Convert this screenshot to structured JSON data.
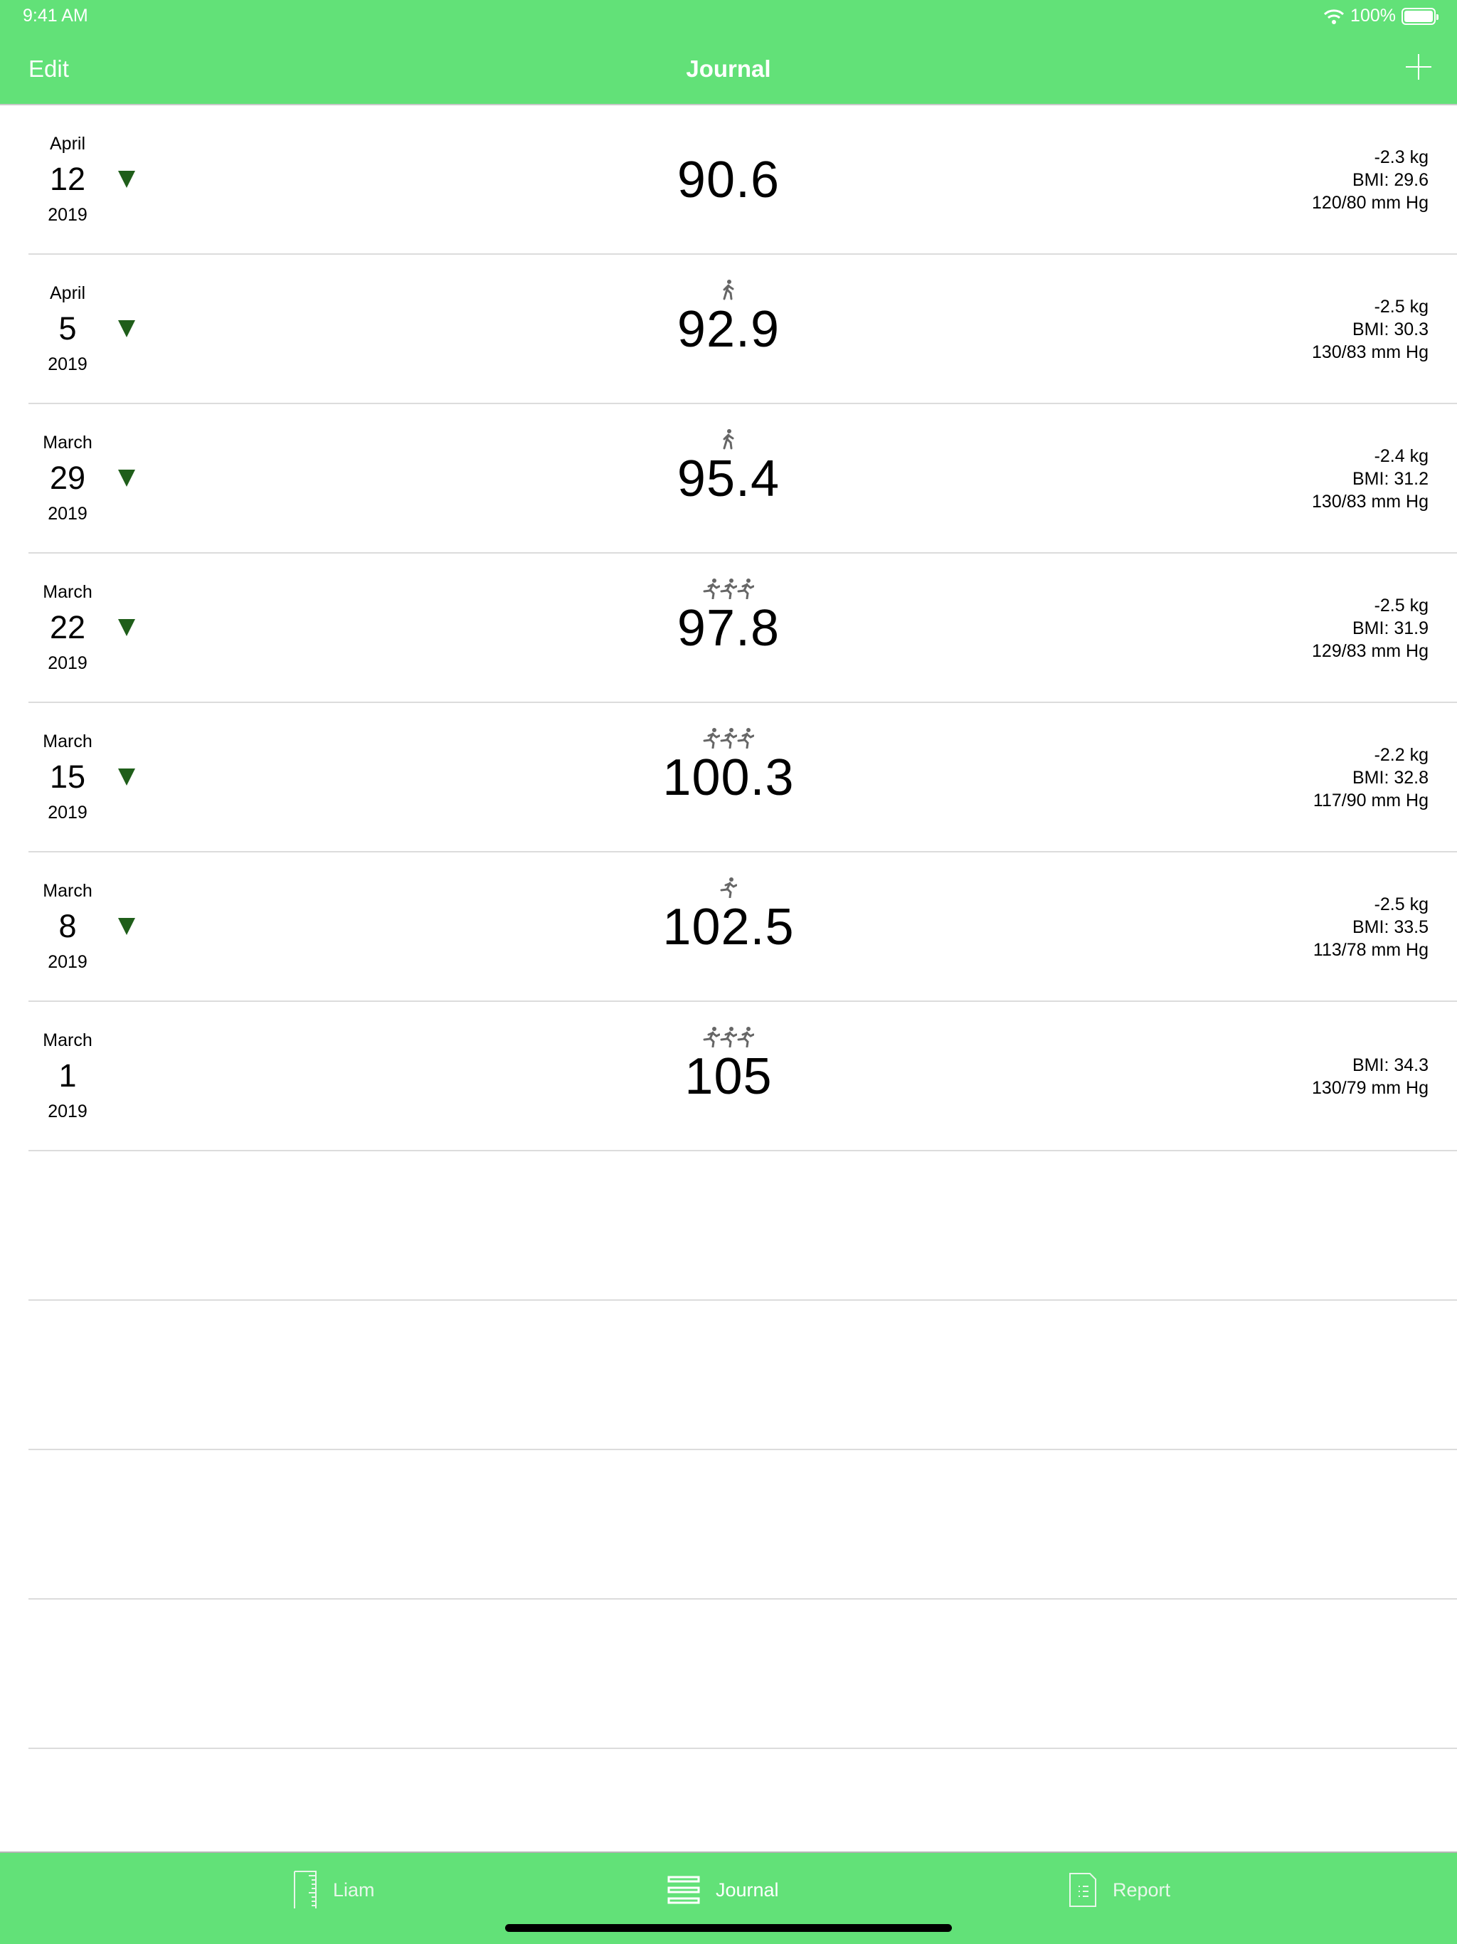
{
  "status_bar": {
    "time": "9:41 AM",
    "battery": "100%"
  },
  "nav": {
    "edit_label": "Edit",
    "title": "Journal",
    "add_icon": "plus-icon"
  },
  "entries": [
    {
      "month": "April",
      "day": "12",
      "year": "2019",
      "trend": "down",
      "activity": "none",
      "weight": "90.6",
      "change": "-2.3 kg",
      "bmi": "BMI: 29.6",
      "bp": "120/80 mm Hg"
    },
    {
      "month": "April",
      "day": "5",
      "year": "2019",
      "trend": "down",
      "activity": "walk",
      "weight": "92.9",
      "change": "-2.5 kg",
      "bmi": "BMI: 30.3",
      "bp": "130/83 mm Hg"
    },
    {
      "month": "March",
      "day": "29",
      "year": "2019",
      "trend": "down",
      "activity": "walk",
      "weight": "95.4",
      "change": "-2.4 kg",
      "bmi": "BMI: 31.2",
      "bp": "130/83 mm Hg"
    },
    {
      "month": "March",
      "day": "22",
      "year": "2019",
      "trend": "down",
      "activity": "run-3",
      "weight": "97.8",
      "change": "-2.5 kg",
      "bmi": "BMI: 31.9",
      "bp": "129/83 mm Hg"
    },
    {
      "month": "March",
      "day": "15",
      "year": "2019",
      "trend": "down",
      "activity": "run-3",
      "weight": "100.3",
      "change": "-2.2 kg",
      "bmi": "BMI: 32.8",
      "bp": "117/90 mm Hg"
    },
    {
      "month": "March",
      "day": "8",
      "year": "2019",
      "trend": "down",
      "activity": "run-1",
      "weight": "102.5",
      "change": "-2.5 kg",
      "bmi": "BMI: 33.5",
      "bp": "113/78 mm Hg"
    },
    {
      "month": "March",
      "day": "1",
      "year": "2019",
      "trend": "none",
      "activity": "run-3",
      "weight": "105",
      "change": "",
      "bmi": "BMI: 34.3",
      "bp": "130/79 mm Hg"
    }
  ],
  "tabs": [
    {
      "label": "Liam",
      "icon": "ruler-icon"
    },
    {
      "label": "Journal",
      "icon": "list-icon",
      "active": true
    },
    {
      "label": "Report",
      "icon": "document-icon"
    }
  ],
  "colors": {
    "accent": "#62e178",
    "trend_down": "#1f5e1a",
    "activity_icon": "#666666"
  }
}
